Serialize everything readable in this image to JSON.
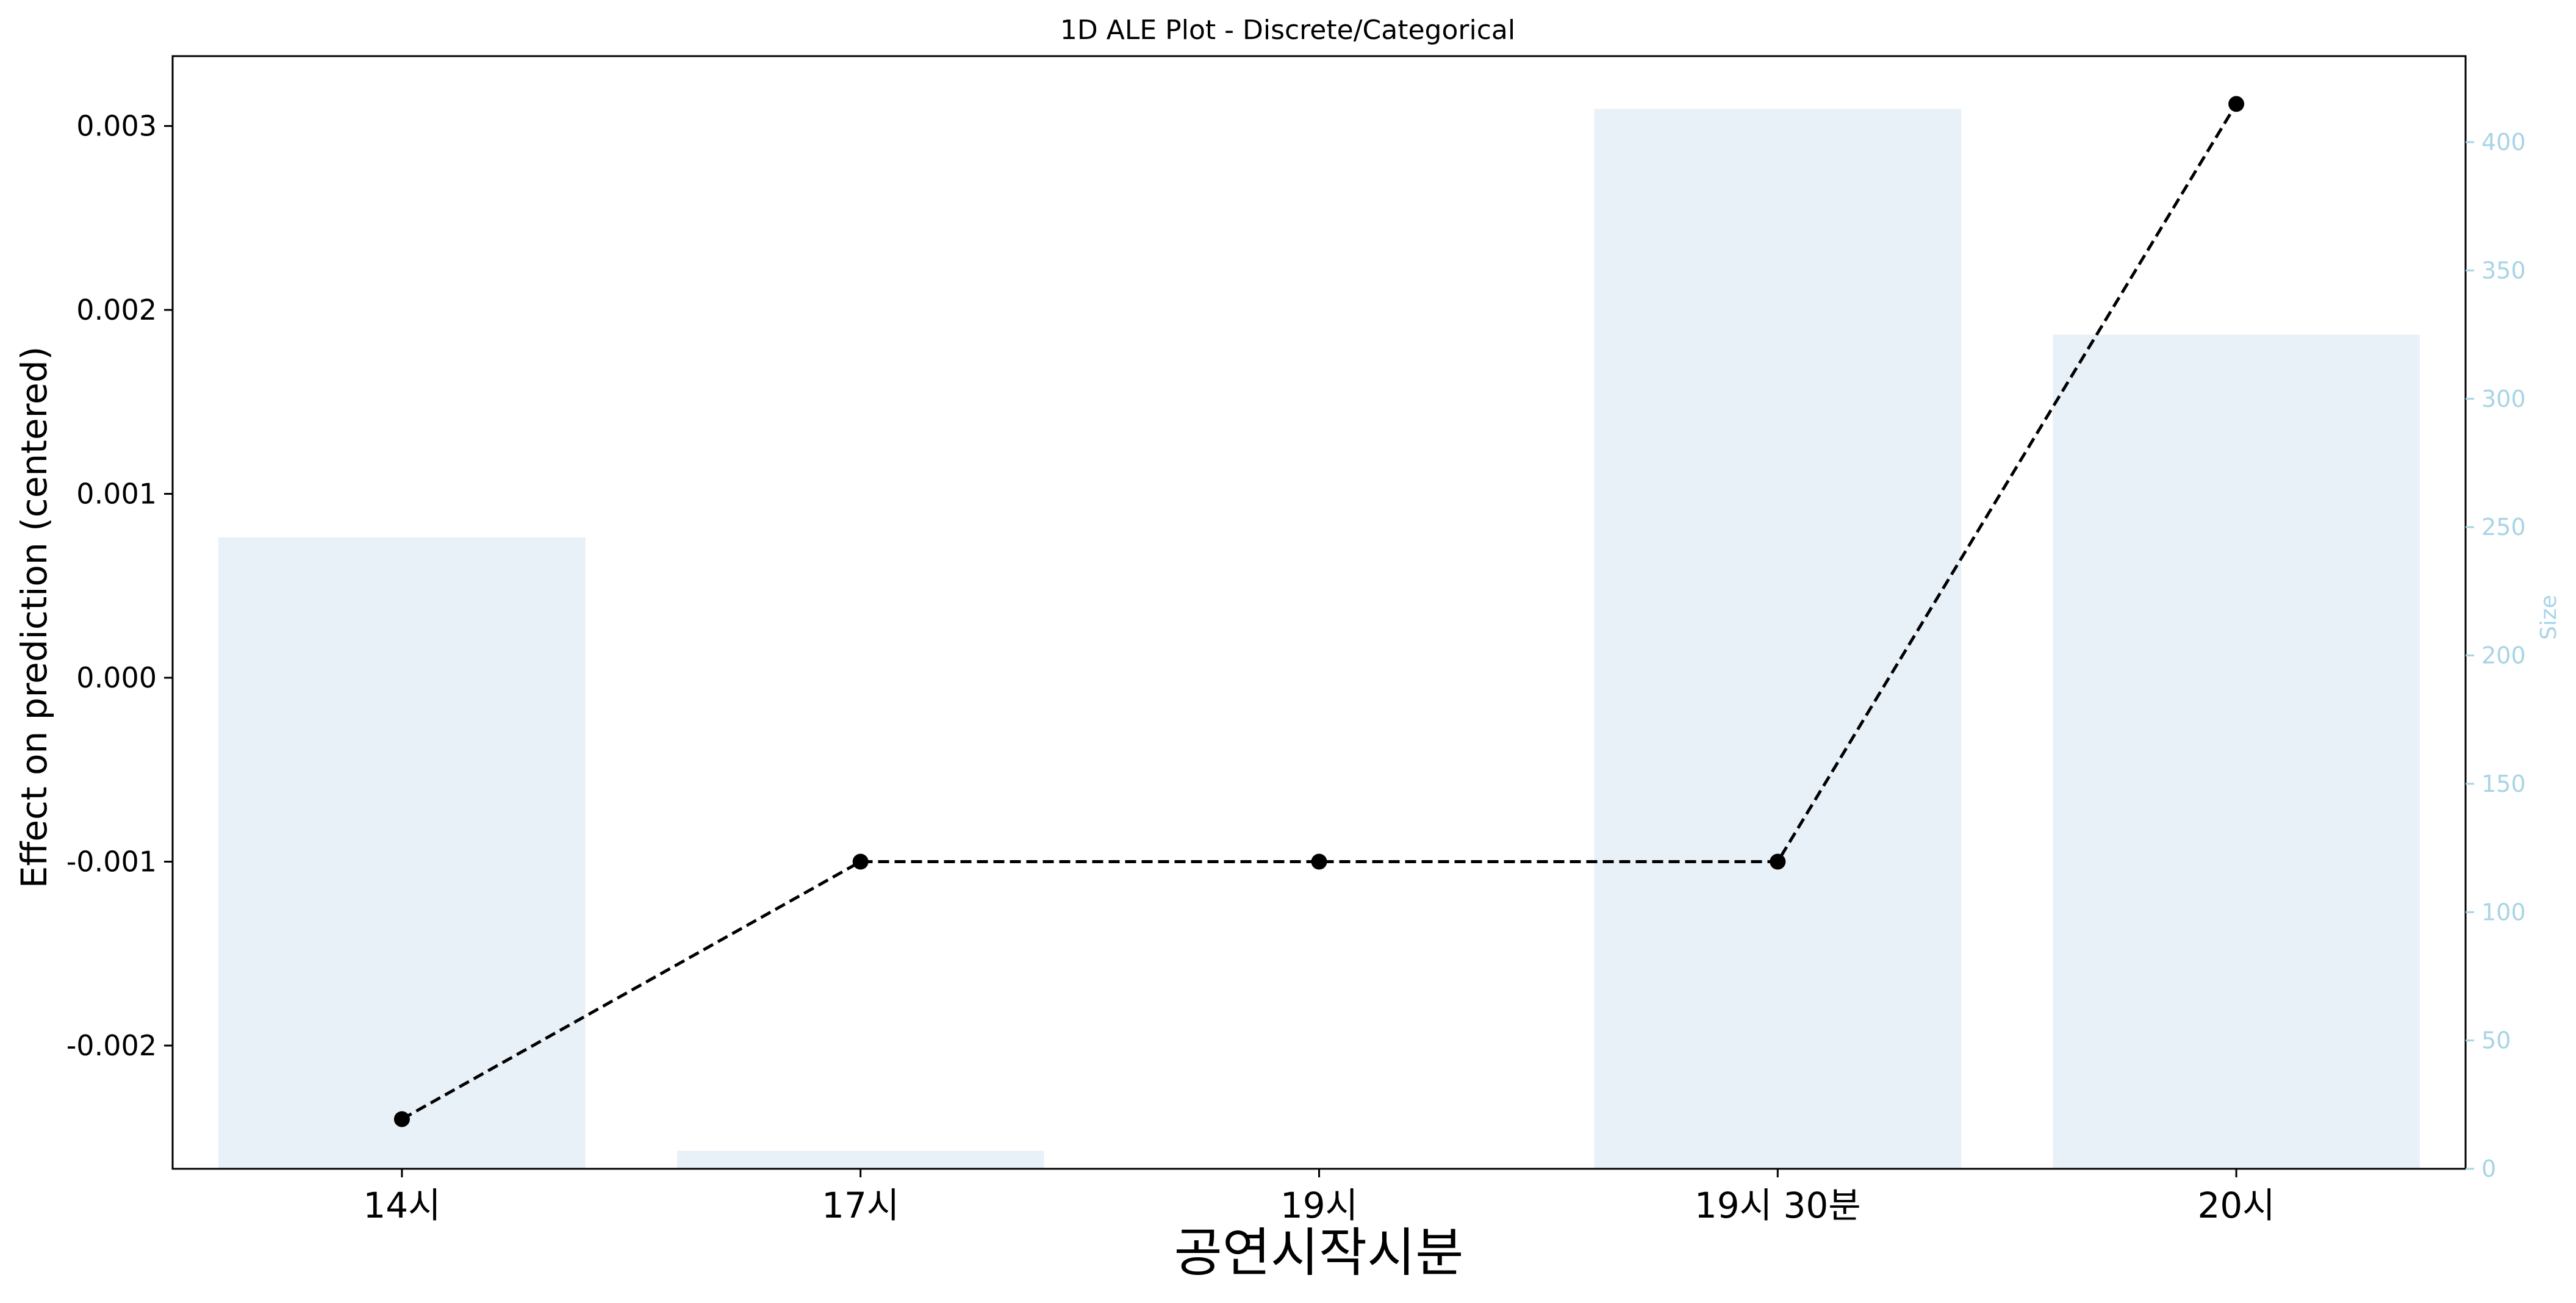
{
  "chart_data": {
    "type": "bar+line",
    "title": "1D ALE Plot - Discrete/Categorical",
    "xlabel": "공연시작시분",
    "ylabel": "Effect on prediction (centered)",
    "y2label": "Size",
    "categories": [
      "14시",
      "17시",
      "19시",
      "19시 30분",
      "20시"
    ],
    "ale_values": [
      -0.0024,
      -0.001,
      -0.001,
      -0.001,
      0.00312
    ],
    "size_values": [
      246,
      7,
      0,
      413,
      325
    ],
    "ylim": [
      -0.00267,
      0.00338
    ],
    "y_ticks": [
      -0.002,
      -0.001,
      0.0,
      0.001,
      0.002,
      0.003
    ],
    "y_tick_labels": [
      "-0.002",
      "-0.001",
      "0.000",
      "0.001",
      "0.002",
      "0.003"
    ],
    "y2lim": [
      0,
      400
    ],
    "y2_ticks": [
      0,
      50,
      100,
      150,
      200,
      250,
      300,
      350,
      400
    ],
    "y2_tick_labels": [
      "0",
      "50",
      "100",
      "150",
      "200",
      "250",
      "300",
      "350",
      "400"
    ],
    "line_style": "dashed",
    "line_color": "#000000",
    "bar_color": "#e8f0f8",
    "secondary_axis_color": "#a8d4e6",
    "grid": false
  }
}
